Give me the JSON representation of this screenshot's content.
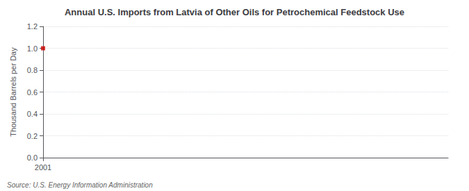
{
  "chart_data": {
    "type": "scatter",
    "title": "Annual U.S. Imports from Latvia of Other Oils for Petrochemical Feedstock Use",
    "ylabel": "Thousand Barrels per Day",
    "annotation": "Source: U.S. Energy Information Administration",
    "x": [
      2001
    ],
    "values": [
      1.0
    ],
    "color": "#cc0000",
    "marker": "square",
    "xlim": [
      2001,
      2024
    ],
    "xticks": [
      2001
    ],
    "ylim": [
      0.0,
      1.2
    ],
    "yticks": [
      {
        "value": 0.0,
        "label": "0.0"
      },
      0.2,
      0.4,
      0.6,
      0.8,
      {
        "value": 1.0,
        "label": "1.0"
      },
      1.2
    ],
    "grid": true
  }
}
